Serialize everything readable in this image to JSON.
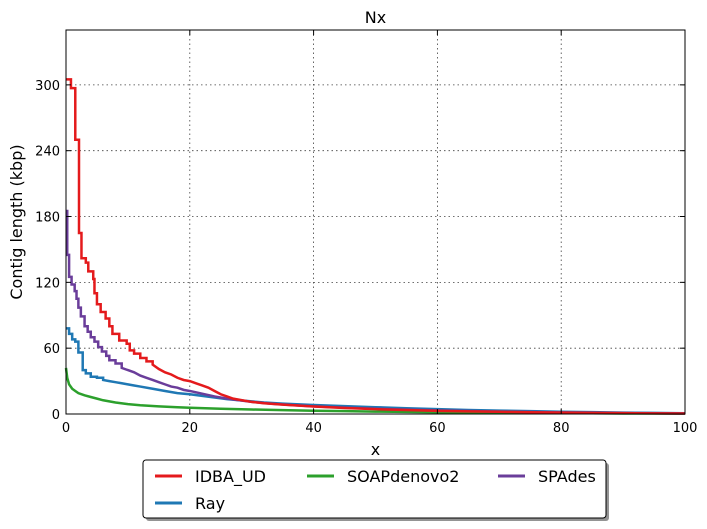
{
  "chart_data": {
    "type": "line",
    "title": "Nx",
    "xlabel": "x",
    "ylabel": "Contig length  (kbp)",
    "xlim": [
      0,
      100
    ],
    "ylim": [
      0,
      350
    ],
    "xticks": [
      0,
      20,
      40,
      60,
      80,
      100
    ],
    "yticks": [
      0,
      60,
      120,
      180,
      240,
      300
    ],
    "grid": true,
    "legend_position": "bottom-outside",
    "series": [
      {
        "name": "IDBA_UD",
        "color": "#e41a1c",
        "step": true,
        "points": [
          [
            0,
            305
          ],
          [
            0.8,
            305
          ],
          [
            0.8,
            297
          ],
          [
            1.5,
            297
          ],
          [
            1.5,
            250
          ],
          [
            2.1,
            250
          ],
          [
            2.1,
            165
          ],
          [
            2.5,
            165
          ],
          [
            2.5,
            142
          ],
          [
            3.2,
            142
          ],
          [
            3.2,
            138
          ],
          [
            3.6,
            138
          ],
          [
            3.6,
            130
          ],
          [
            4.4,
            130
          ],
          [
            4.4,
            123
          ],
          [
            4.6,
            123
          ],
          [
            4.6,
            110
          ],
          [
            5,
            110
          ],
          [
            5,
            100
          ],
          [
            5.6,
            100
          ],
          [
            5.6,
            93
          ],
          [
            6.4,
            93
          ],
          [
            6.4,
            87
          ],
          [
            7,
            87
          ],
          [
            7,
            80
          ],
          [
            7.5,
            80
          ],
          [
            7.5,
            73
          ],
          [
            8.6,
            73
          ],
          [
            8.6,
            67
          ],
          [
            9.8,
            67
          ],
          [
            9.8,
            64
          ],
          [
            10.3,
            64
          ],
          [
            10.3,
            58
          ],
          [
            11,
            58
          ],
          [
            11,
            55
          ],
          [
            12,
            55
          ],
          [
            12,
            51
          ],
          [
            13,
            51
          ],
          [
            13,
            48
          ],
          [
            14,
            48
          ],
          [
            14,
            45
          ],
          [
            15,
            41
          ],
          [
            16,
            38
          ],
          [
            17,
            36
          ],
          [
            18,
            33
          ],
          [
            19,
            31
          ],
          [
            20,
            30
          ],
          [
            21,
            28
          ],
          [
            22,
            26
          ],
          [
            23,
            24
          ],
          [
            24,
            21
          ],
          [
            25,
            18
          ],
          [
            26,
            16
          ],
          [
            27,
            14
          ],
          [
            28,
            13
          ],
          [
            30,
            11
          ],
          [
            32,
            9.8
          ],
          [
            35,
            8.5
          ],
          [
            40,
            6.8
          ],
          [
            45,
            5.5
          ],
          [
            50,
            4.4
          ],
          [
            55,
            3.6
          ],
          [
            60,
            2.9
          ],
          [
            65,
            2.4
          ],
          [
            70,
            2
          ],
          [
            75,
            1.6
          ],
          [
            80,
            1.3
          ],
          [
            85,
            1
          ],
          [
            90,
            0.8
          ],
          [
            95,
            0.6
          ],
          [
            100,
            0.4
          ]
        ]
      },
      {
        "name": "Ray",
        "color": "#1f78b4",
        "step": true,
        "points": [
          [
            0,
            78
          ],
          [
            0.5,
            78
          ],
          [
            0.5,
            73
          ],
          [
            1,
            73
          ],
          [
            1,
            68
          ],
          [
            1.5,
            68
          ],
          [
            1.5,
            66
          ],
          [
            2,
            66
          ],
          [
            2,
            56
          ],
          [
            2.7,
            56
          ],
          [
            2.7,
            40
          ],
          [
            3.2,
            40
          ],
          [
            3.2,
            37
          ],
          [
            4,
            37
          ],
          [
            4,
            34
          ],
          [
            5,
            34
          ],
          [
            5,
            33
          ],
          [
            6,
            33
          ],
          [
            6,
            31
          ],
          [
            7,
            30
          ],
          [
            8,
            29
          ],
          [
            9,
            28
          ],
          [
            10,
            27
          ],
          [
            11,
            26
          ],
          [
            12,
            25
          ],
          [
            14,
            23
          ],
          [
            16,
            21
          ],
          [
            18,
            19
          ],
          [
            20,
            18
          ],
          [
            22,
            16.5
          ],
          [
            24,
            15
          ],
          [
            26,
            13.5
          ],
          [
            28,
            12.5
          ],
          [
            30,
            11.5
          ],
          [
            32,
            10.5
          ],
          [
            35,
            9.5
          ],
          [
            40,
            8.2
          ],
          [
            45,
            7.2
          ],
          [
            50,
            6.2
          ],
          [
            55,
            5.2
          ],
          [
            60,
            4.4
          ],
          [
            65,
            3.7
          ],
          [
            70,
            3.1
          ],
          [
            75,
            2.6
          ],
          [
            80,
            2.1
          ],
          [
            85,
            1.7
          ],
          [
            90,
            1.3
          ],
          [
            95,
            1
          ],
          [
            100,
            0.7
          ]
        ]
      },
      {
        "name": "SOAPdenovo2",
        "color": "#2ca02c",
        "step": false,
        "points": [
          [
            0,
            42
          ],
          [
            0.2,
            33
          ],
          [
            0.5,
            27
          ],
          [
            1,
            23
          ],
          [
            1.5,
            21
          ],
          [
            2,
            19
          ],
          [
            3,
            17
          ],
          [
            4,
            15.5
          ],
          [
            5,
            14
          ],
          [
            6,
            12.5
          ],
          [
            8,
            10.5
          ],
          [
            10,
            9
          ],
          [
            12,
            8
          ],
          [
            15,
            7
          ],
          [
            18,
            6.2
          ],
          [
            20,
            5.7
          ],
          [
            25,
            4.8
          ],
          [
            30,
            4.1
          ],
          [
            35,
            3.5
          ],
          [
            40,
            3
          ],
          [
            45,
            2.6
          ],
          [
            50,
            2.2
          ],
          [
            55,
            1.9
          ],
          [
            60,
            1.6
          ],
          [
            65,
            1.4
          ],
          [
            70,
            1.2
          ],
          [
            75,
            1
          ],
          [
            80,
            0.8
          ],
          [
            85,
            0.7
          ],
          [
            90,
            0.5
          ],
          [
            95,
            0.4
          ],
          [
            100,
            0.3
          ]
        ]
      },
      {
        "name": "SPAdes",
        "color": "#6a3d9a",
        "step": true,
        "points": [
          [
            0,
            185
          ],
          [
            0.2,
            185
          ],
          [
            0.2,
            145
          ],
          [
            0.5,
            145
          ],
          [
            0.5,
            125
          ],
          [
            0.9,
            125
          ],
          [
            0.9,
            118
          ],
          [
            1.4,
            118
          ],
          [
            1.4,
            112
          ],
          [
            1.7,
            112
          ],
          [
            1.7,
            105
          ],
          [
            2,
            105
          ],
          [
            2,
            97
          ],
          [
            2.4,
            97
          ],
          [
            2.4,
            89
          ],
          [
            3,
            89
          ],
          [
            3,
            80
          ],
          [
            3.5,
            80
          ],
          [
            3.5,
            75
          ],
          [
            4,
            75
          ],
          [
            4,
            70
          ],
          [
            4.6,
            70
          ],
          [
            4.6,
            66
          ],
          [
            5.2,
            66
          ],
          [
            5.2,
            61
          ],
          [
            5.8,
            61
          ],
          [
            5.8,
            57
          ],
          [
            6.5,
            57
          ],
          [
            6.5,
            53
          ],
          [
            7,
            53
          ],
          [
            7,
            49
          ],
          [
            8,
            49
          ],
          [
            8,
            46
          ],
          [
            9,
            46
          ],
          [
            9,
            42
          ],
          [
            10,
            40
          ],
          [
            11,
            38
          ],
          [
            12,
            35
          ],
          [
            13,
            33
          ],
          [
            14,
            31
          ],
          [
            15,
            29
          ],
          [
            16,
            27
          ],
          [
            17,
            25
          ],
          [
            18,
            24
          ],
          [
            19,
            22
          ],
          [
            20,
            21
          ],
          [
            22,
            18.5
          ],
          [
            24,
            16
          ],
          [
            26,
            14
          ],
          [
            28,
            12.5
          ],
          [
            30,
            11
          ],
          [
            33,
            9.5
          ],
          [
            36,
            8.3
          ],
          [
            40,
            7
          ],
          [
            45,
            5.8
          ],
          [
            50,
            4.8
          ],
          [
            55,
            4
          ],
          [
            60,
            3.3
          ],
          [
            65,
            2.7
          ],
          [
            70,
            2.2
          ],
          [
            75,
            1.8
          ],
          [
            80,
            1.5
          ],
          [
            85,
            1.2
          ],
          [
            90,
            0.9
          ],
          [
            95,
            0.7
          ],
          [
            100,
            0.5
          ]
        ]
      }
    ]
  }
}
